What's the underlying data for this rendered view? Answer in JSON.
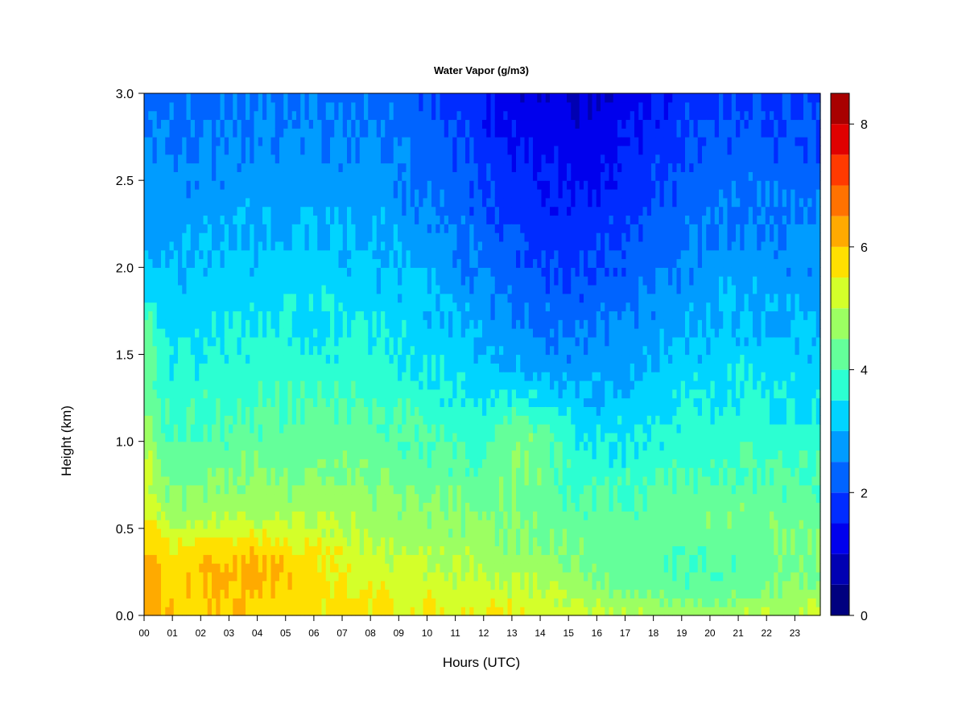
{
  "chart_data": {
    "type": "heatmap",
    "title": "Water Vapor (g/m3)",
    "xlabel": "Hours (UTC)",
    "ylabel": "Height (km)",
    "x_ticks": [
      "00",
      "01",
      "02",
      "03",
      "04",
      "05",
      "06",
      "07",
      "08",
      "09",
      "10",
      "11",
      "12",
      "13",
      "14",
      "15",
      "16",
      "17",
      "18",
      "19",
      "20",
      "21",
      "22",
      "23"
    ],
    "y_ticks": [
      "0.0",
      "0.5",
      "1.0",
      "1.5",
      "2.0",
      "2.5",
      "3.0"
    ],
    "xlim": [
      0,
      23.9
    ],
    "ylim": [
      0,
      3.0
    ],
    "colorbar": {
      "range": [
        0,
        8.5
      ],
      "ticks": [
        "0",
        "2",
        "4",
        "6",
        "8"
      ],
      "levels": [
        0,
        0.5,
        1,
        1.5,
        2,
        2.5,
        3,
        3.5,
        4,
        4.5,
        5,
        5.5,
        6,
        6.5,
        7,
        7.5,
        8,
        8.5
      ],
      "colors": [
        "#00007f",
        "#0000b2",
        "#0000ed",
        "#002cff",
        "#0064ff",
        "#009cff",
        "#00d4ff",
        "#2cffd2",
        "#64ff9a",
        "#9cff62",
        "#d4ff2a",
        "#ffe000",
        "#ffaa00",
        "#ff7200",
        "#ff3a00",
        "#e00000",
        "#a80000"
      ]
    },
    "grid": false,
    "legend": "right"
  }
}
